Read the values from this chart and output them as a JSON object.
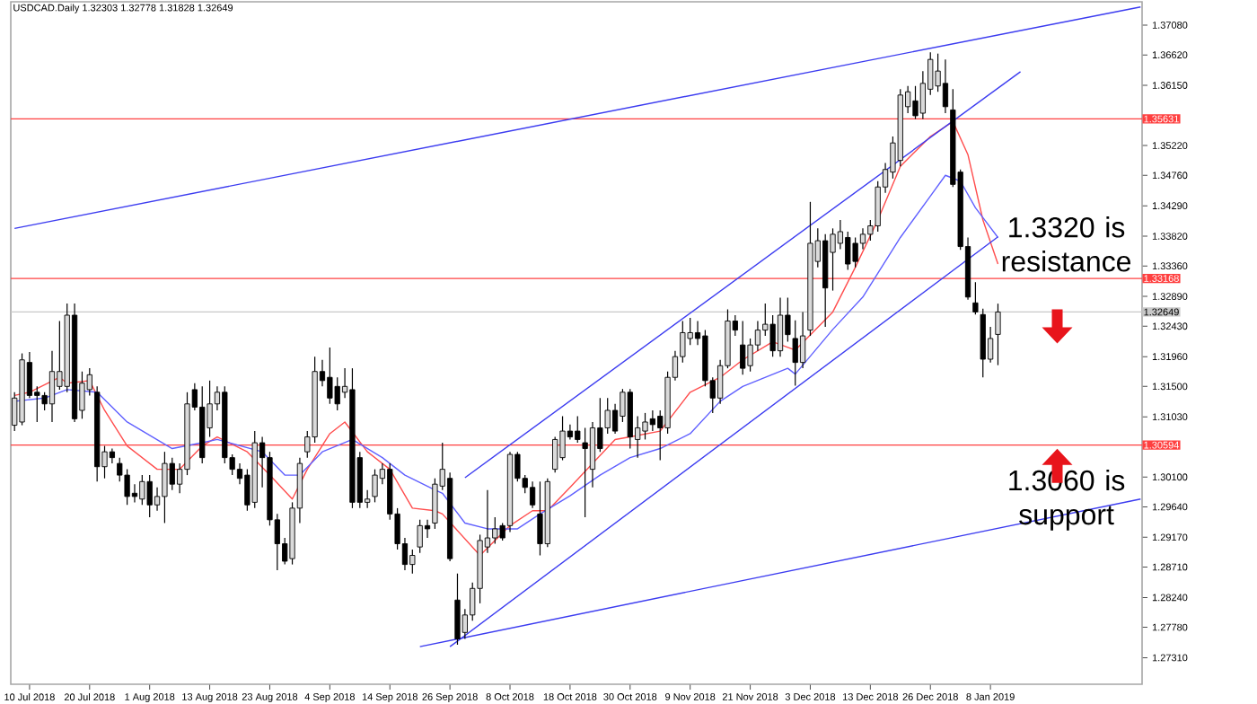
{
  "chart_data": {
    "type": "candlestick",
    "title": "USDCAD.Daily  1.32303 1.32778 1.31828 1.32649",
    "categories": [
      null,
      null,
      "10 Jul 2018",
      null,
      null,
      null,
      null,
      null,
      null,
      null,
      "20 Jul 2018",
      null,
      null,
      null,
      null,
      null,
      null,
      null,
      "1 Aug 2018",
      null,
      null,
      null,
      null,
      null,
      null,
      null,
      "13 Aug 2018",
      null,
      null,
      null,
      null,
      null,
      null,
      null,
      "23 Aug 2018",
      null,
      null,
      null,
      null,
      null,
      null,
      null,
      "4 Sep 2018",
      null,
      null,
      null,
      null,
      null,
      null,
      null,
      "14 Sep 2018",
      null,
      null,
      null,
      null,
      null,
      null,
      null,
      "26 Sep 2018",
      null,
      null,
      null,
      null,
      null,
      null,
      null,
      "8 Oct 2018",
      null,
      null,
      null,
      null,
      null,
      null,
      null,
      "18 Oct 2018",
      null,
      null,
      null,
      null,
      null,
      null,
      null,
      "30 Oct 2018",
      null,
      null,
      null,
      null,
      null,
      null,
      null,
      "9 Nov 2018",
      null,
      null,
      null,
      null,
      null,
      null,
      null,
      "21 Nov 2018",
      null,
      null,
      null,
      null,
      null,
      null,
      null,
      "3 Dec 2018",
      null,
      null,
      null,
      null,
      null,
      null,
      null,
      "13 Dec 2018",
      null,
      null,
      null,
      null,
      null,
      null,
      null,
      "26 Dec 2018",
      null,
      null,
      null,
      null,
      null,
      null,
      null,
      "8 Jan 2019",
      null,
      null,
      null,
      null,
      null,
      null,
      null,
      null,
      null,
      null,
      null,
      null,
      null,
      null,
      null,
      null,
      null,
      null,
      null,
      null
    ],
    "ohlc": [
      [
        1.309,
        1.3141,
        1.3081,
        1.3132
      ],
      [
        1.3095,
        1.3201,
        1.309,
        1.3191
      ],
      [
        1.3187,
        1.3203,
        1.3132,
        1.3136
      ],
      [
        1.3141,
        1.315,
        1.3095,
        1.3136
      ],
      [
        1.3136,
        1.3141,
        1.3113,
        1.3123
      ],
      [
        1.3123,
        1.3205,
        1.3095,
        1.3173
      ],
      [
        1.315,
        1.3251,
        1.3145,
        1.3173
      ],
      [
        1.315,
        1.3278,
        1.3141,
        1.326
      ],
      [
        1.326,
        1.3278,
        1.3095,
        1.31
      ],
      [
        1.3113,
        1.3173,
        1.31,
        1.3155
      ],
      [
        1.3145,
        1.3178,
        1.3136,
        1.3168
      ],
      [
        1.3141,
        1.315,
        1.3003,
        1.3026
      ],
      [
        1.3026,
        1.3058,
        1.3008,
        1.3049
      ],
      [
        1.3049,
        1.3054,
        1.3031,
        1.304
      ],
      [
        1.3031,
        1.304,
        1.3003,
        1.3013
      ],
      [
        1.3013,
        1.3022,
        1.2967,
        1.298
      ],
      [
        1.2985,
        1.2999,
        1.2971,
        1.298
      ],
      [
        1.2976,
        1.3013,
        1.2967,
        1.3003
      ],
      [
        1.3003,
        1.3013,
        1.2948,
        1.2967
      ],
      [
        1.2967,
        1.2994,
        1.2958,
        1.298
      ],
      [
        1.298,
        1.3049,
        1.2939,
        1.3031
      ],
      [
        1.3031,
        1.304,
        1.299,
        1.2999
      ],
      [
        1.2999,
        1.3031,
        1.2985,
        1.3022
      ],
      [
        1.3022,
        1.3141,
        1.3013,
        1.3123
      ],
      [
        1.3145,
        1.3155,
        1.3113,
        1.3118
      ],
      [
        1.3118,
        1.315,
        1.3031,
        1.304
      ],
      [
        1.3086,
        1.3159,
        1.3072,
        1.3123
      ],
      [
        1.3123,
        1.315,
        1.3113,
        1.3141
      ],
      [
        1.3141,
        1.315,
        1.3031,
        1.304
      ],
      [
        1.304,
        1.3045,
        1.3013,
        1.3022
      ],
      [
        1.3022,
        1.3031,
        1.2999,
        1.3008
      ],
      [
        1.3013,
        1.3022,
        1.2958,
        1.2967
      ],
      [
        1.2971,
        1.3081,
        1.2962,
        1.3063
      ],
      [
        1.3063,
        1.3072,
        1.2994,
        1.304
      ],
      [
        1.304,
        1.3049,
        1.2935,
        1.2944
      ],
      [
        1.2944,
        1.2953,
        1.2866,
        1.2907
      ],
      [
        1.2907,
        1.2916,
        1.2875,
        1.288
      ],
      [
        1.2884,
        1.2971,
        1.2875,
        1.2962
      ],
      [
        1.2962,
        1.304,
        1.2939,
        1.3031
      ],
      [
        1.3049,
        1.3081,
        1.304,
        1.3072
      ],
      [
        1.3072,
        1.3196,
        1.3063,
        1.3173
      ],
      [
        1.3173,
        1.3191,
        1.315,
        1.3159
      ],
      [
        1.3164,
        1.321,
        1.3123,
        1.3132
      ],
      [
        1.315,
        1.3164,
        1.3113,
        1.3123
      ],
      [
        1.3141,
        1.3178,
        1.3132,
        1.315
      ],
      [
        1.3145,
        1.3178,
        1.2962,
        1.2971
      ],
      [
        1.304,
        1.3049,
        1.2962,
        1.2971
      ],
      [
        1.2971,
        1.299,
        1.2962,
        1.2976
      ],
      [
        1.298,
        1.3022,
        1.2971,
        1.3013
      ],
      [
        1.3008,
        1.3031,
        1.2999,
        1.3022
      ],
      [
        1.3022,
        1.3031,
        1.2944,
        1.2953
      ],
      [
        1.2953,
        1.2962,
        1.2898,
        1.2907
      ],
      [
        1.2907,
        1.2916,
        1.2866,
        1.2875
      ],
      [
        1.2875,
        1.2898,
        1.2861,
        1.2889
      ],
      [
        1.2902,
        1.2944,
        1.2893,
        1.2935
      ],
      [
        1.2935,
        1.2944,
        1.2916,
        1.293
      ],
      [
        1.2939,
        1.3008,
        1.293,
        1.2999
      ],
      [
        1.2996,
        1.3063,
        1.299,
        1.3022
      ],
      [
        1.3008,
        1.3017,
        1.288,
        1.2884
      ],
      [
        1.282,
        1.2861,
        1.2751,
        1.276
      ],
      [
        1.277,
        1.2806,
        1.276,
        1.2797
      ],
      [
        1.2797,
        1.2847,
        1.2788,
        1.2838
      ],
      [
        1.2838,
        1.2921,
        1.2815,
        1.2912
      ],
      [
        1.2902,
        1.299,
        1.2893,
        1.2916
      ],
      [
        1.2916,
        1.2948,
        1.2907,
        1.293
      ],
      [
        1.2935,
        1.2939,
        1.2912,
        1.2916
      ],
      [
        1.2935,
        1.3049,
        1.2925,
        1.3045
      ],
      [
        1.3045,
        1.3049,
        1.3003,
        1.3008
      ],
      [
        1.3008,
        1.3013,
        1.2985,
        1.2994
      ],
      [
        1.2994,
        1.3003,
        1.2962,
        1.2967
      ],
      [
        1.2953,
        1.3003,
        1.2889,
        1.2907
      ],
      [
        1.2907,
        1.3008,
        1.2902,
        1.3003
      ],
      [
        1.3022,
        1.3072,
        1.3017,
        1.3068
      ],
      [
        1.304,
        1.3104,
        1.3036,
        1.3081
      ],
      [
        1.3081,
        1.3091,
        1.3068,
        1.3072
      ],
      [
        1.3081,
        1.3104,
        1.3063,
        1.3068
      ],
      [
        1.3063,
        1.3086,
        1.2948,
        1.3054
      ],
      [
        1.3022,
        1.3095,
        1.2994,
        1.3086
      ],
      [
        1.3086,
        1.3132,
        1.3049,
        1.3054
      ],
      [
        1.3086,
        1.3132,
        1.3077,
        1.3113
      ],
      [
        1.3113,
        1.3123,
        1.3077,
        1.3081
      ],
      [
        1.3104,
        1.3146,
        1.3095,
        1.3141
      ],
      [
        1.3141,
        1.3146,
        1.3054,
        1.3072
      ],
      [
        1.3068,
        1.3104,
        1.304,
        1.3086
      ],
      [
        1.3081,
        1.3109,
        1.3068,
        1.3095
      ],
      [
        1.31,
        1.3113,
        1.3081,
        1.3091
      ],
      [
        1.3104,
        1.3113,
        1.3036,
        1.3086
      ],
      [
        1.3086,
        1.3173,
        1.3077,
        1.3164
      ],
      [
        1.3164,
        1.3205,
        1.3159,
        1.3196
      ],
      [
        1.3196,
        1.3251,
        1.3187,
        1.3233
      ],
      [
        1.3224,
        1.3256,
        1.3214,
        1.3233
      ],
      [
        1.3233,
        1.3251,
        1.3214,
        1.3224
      ],
      [
        1.3228,
        1.3237,
        1.315,
        1.3159
      ],
      [
        1.3159,
        1.3164,
        1.3109,
        1.3132
      ],
      [
        1.3132,
        1.3191,
        1.3123,
        1.3182
      ],
      [
        1.3182,
        1.3269,
        1.3178,
        1.3251
      ],
      [
        1.3251,
        1.326,
        1.3228,
        1.3237
      ],
      [
        1.3214,
        1.3251,
        1.3168,
        1.3178
      ],
      [
        1.3182,
        1.3224,
        1.3173,
        1.3214
      ],
      [
        1.3214,
        1.3251,
        1.3205,
        1.3237
      ],
      [
        1.3237,
        1.3278,
        1.3228,
        1.3246
      ],
      [
        1.3246,
        1.326,
        1.3196,
        1.3205
      ],
      [
        1.3205,
        1.3287,
        1.3196,
        1.326
      ],
      [
        1.326,
        1.3287,
        1.3219,
        1.323
      ],
      [
        1.3224,
        1.3252,
        1.3151,
        1.3187
      ],
      [
        1.3187,
        1.3265,
        1.3178,
        1.3228
      ],
      [
        1.3237,
        1.3435,
        1.3228,
        1.3371
      ],
      [
        1.3343,
        1.3394,
        1.3334,
        1.3375
      ],
      [
        1.3375,
        1.3385,
        1.3242,
        1.3302
      ],
      [
        1.3357,
        1.3394,
        1.3298,
        1.3385
      ],
      [
        1.3371,
        1.3407,
        1.3362,
        1.3389
      ],
      [
        1.338,
        1.3389,
        1.333,
        1.3339
      ],
      [
        1.3371,
        1.338,
        1.3334,
        1.3343
      ],
      [
        1.3371,
        1.3394,
        1.3362,
        1.3385
      ],
      [
        1.3385,
        1.3407,
        1.3375,
        1.3398
      ],
      [
        1.3398,
        1.3467,
        1.3389,
        1.3458
      ],
      [
        1.3458,
        1.3495,
        1.3449,
        1.3485
      ],
      [
        1.3481,
        1.3536,
        1.3471,
        1.3526
      ],
      [
        1.3499,
        1.3609,
        1.349,
        1.36
      ],
      [
        1.3582,
        1.3614,
        1.3572,
        1.3605
      ],
      [
        1.3591,
        1.3614,
        1.3563,
        1.3568
      ],
      [
        1.3572,
        1.3637,
        1.3563,
        1.3618
      ],
      [
        1.3609,
        1.3666,
        1.36,
        1.3655
      ],
      [
        1.3614,
        1.3664,
        1.3605,
        1.3637
      ],
      [
        1.3618,
        1.3655,
        1.3572,
        1.3582
      ],
      [
        1.3577,
        1.3609,
        1.3458,
        1.3462
      ],
      [
        1.3481,
        1.3485,
        1.3361,
        1.3366
      ],
      [
        1.3366,
        1.338,
        1.3284,
        1.3288
      ],
      [
        1.3279,
        1.3311,
        1.3261,
        1.3265
      ],
      [
        1.3261,
        1.327,
        1.3164,
        1.3192
      ],
      [
        1.3192,
        1.3242,
        1.3187,
        1.3224
      ],
      [
        1.32303,
        1.32778,
        1.31828,
        1.32649
      ],
      null,
      null,
      null,
      null,
      null,
      null,
      null,
      null,
      null,
      null,
      null,
      null,
      null,
      null,
      null,
      null,
      null,
      null,
      null
    ],
    "series": [
      {
        "type": "line",
        "color": "#ff4d4d",
        "values": [
          1.3136,
          null,
          1.3141,
          null,
          null,
          null,
          1.3164,
          1.3155,
          null,
          null,
          1.3159,
          null,
          1.3113,
          null,
          null,
          1.3058,
          null,
          null,
          null,
          1.3022,
          null,
          null,
          1.3022,
          null,
          null,
          1.3058,
          null,
          1.3072,
          null,
          null,
          null,
          1.3049,
          null,
          null,
          1.3013,
          null,
          null,
          1.2976,
          null,
          1.3022,
          null,
          null,
          1.3077,
          null,
          1.3095,
          null,
          null,
          1.3049,
          null,
          null,
          1.3022,
          null,
          null,
          1.2962,
          null,
          null,
          1.2958,
          1.2953,
          null,
          null,
          null,
          null,
          1.2889,
          null,
          null,
          null,
          1.2935,
          null,
          null,
          1.2958,
          null,
          1.2958,
          null,
          null,
          1.2994,
          null,
          null,
          1.3031,
          null,
          null,
          1.3068,
          null,
          1.3072,
          null,
          null,
          null,
          1.3081,
          null,
          null,
          null,
          1.3141,
          null,
          null,
          null,
          1.3164,
          null,
          null,
          1.3191,
          null,
          null,
          null,
          1.3219,
          null,
          null,
          1.3206,
          null,
          null,
          null,
          null,
          1.3265,
          null,
          null,
          1.3334,
          null,
          null,
          1.3407,
          null,
          null,
          1.349,
          null,
          null,
          null,
          1.3536,
          null,
          null,
          1.3559,
          null,
          1.3508,
          null,
          1.3407,
          null,
          1.3339,
          null,
          null,
          null,
          null,
          null,
          null,
          null,
          null,
          null,
          null,
          null,
          null,
          null,
          null,
          null,
          null,
          null,
          null,
          null
        ]
      },
      {
        "type": "line",
        "color": "#6060ff",
        "values": [
          1.3127,
          null,
          null,
          null,
          1.3132,
          null,
          null,
          1.3145,
          null,
          null,
          null,
          1.3141,
          null,
          null,
          null,
          1.3095,
          null,
          null,
          null,
          null,
          null,
          1.3054,
          null,
          null,
          null,
          1.3063,
          null,
          1.3068,
          null,
          null,
          null,
          null,
          null,
          1.3049,
          null,
          null,
          1.3013,
          null,
          1.3013,
          null,
          null,
          1.3049,
          null,
          null,
          null,
          1.3068,
          null,
          null,
          null,
          1.304,
          null,
          null,
          1.3013,
          null,
          null,
          null,
          1.299,
          1.2985,
          null,
          null,
          1.2939,
          null,
          null,
          1.293,
          null,
          null,
          null,
          1.293,
          null,
          null,
          1.2953,
          null,
          null,
          null,
          1.2981,
          null,
          null,
          null,
          1.3013,
          null,
          null,
          null,
          1.304,
          null,
          null,
          null,
          1.3054,
          null,
          null,
          null,
          1.3077,
          null,
          null,
          null,
          1.3127,
          null,
          null,
          1.315,
          null,
          null,
          null,
          null,
          null,
          1.3178,
          1.3169,
          null,
          null,
          null,
          null,
          1.3238,
          null,
          null,
          null,
          1.3288,
          null,
          null,
          null,
          null,
          1.338,
          null,
          null,
          null,
          1.3444,
          null,
          1.3476,
          null,
          1.3467,
          null,
          1.3426,
          null,
          null,
          1.338,
          null,
          null,
          null,
          null,
          null,
          null,
          null,
          null,
          null,
          null,
          null,
          null,
          null,
          null,
          null,
          null,
          null,
          null,
          null
        ]
      },
      {
        "type": "line",
        "color": "#3c3cf0",
        "values": [
          1.3394,
          null,
          null,
          null,
          null,
          null,
          null,
          null,
          null,
          null,
          null,
          null,
          null,
          null,
          null,
          null,
          null,
          null,
          null,
          null,
          null,
          null,
          null,
          null,
          null,
          null,
          null,
          null,
          null,
          null,
          null,
          null,
          null,
          null,
          null,
          null,
          null,
          null,
          null,
          null,
          null,
          null,
          null,
          null,
          null,
          null,
          null,
          null,
          null,
          null,
          null,
          null,
          null,
          null,
          null,
          null,
          null,
          null,
          null,
          null,
          null,
          null,
          null,
          null,
          null,
          null,
          null,
          null,
          null,
          null,
          null,
          null,
          null,
          null,
          null,
          null,
          null,
          null,
          null,
          null,
          null,
          null,
          null,
          null,
          null,
          null,
          null,
          null,
          null,
          null,
          null,
          null,
          null,
          null,
          null,
          null,
          null,
          null,
          null,
          null,
          null,
          null,
          null,
          null,
          null,
          null,
          null,
          null,
          null,
          null,
          null,
          null,
          null,
          null,
          null,
          null,
          null,
          null,
          null,
          null,
          null,
          null,
          null,
          null,
          null,
          null,
          null,
          null,
          null,
          null,
          null,
          null,
          null,
          null,
          null,
          null,
          null,
          null,
          null,
          null,
          null,
          null,
          null,
          null,
          null,
          null,
          null,
          null,
          null,
          null,
          1.3736
        ]
      },
      {
        "type": "line",
        "color": "#3c3cf0",
        "values": [
          null,
          null,
          null,
          null,
          null,
          null,
          null,
          null,
          null,
          null,
          null,
          null,
          null,
          null,
          null,
          null,
          null,
          null,
          null,
          null,
          null,
          null,
          null,
          null,
          null,
          null,
          null,
          null,
          null,
          null,
          null,
          null,
          null,
          null,
          null,
          null,
          null,
          null,
          null,
          null,
          null,
          null,
          null,
          null,
          null,
          null,
          null,
          null,
          null,
          null,
          null,
          null,
          null,
          null,
          1.2748,
          null,
          null,
          null,
          null,
          null,
          null,
          null,
          null,
          null,
          null,
          null,
          null,
          null,
          null,
          null,
          null,
          null,
          null,
          null,
          null,
          null,
          null,
          null,
          null,
          null,
          null,
          null,
          null,
          null,
          null,
          null,
          null,
          null,
          null,
          null,
          null,
          null,
          null,
          null,
          null,
          null,
          null,
          null,
          null,
          null,
          null,
          null,
          null,
          null,
          null,
          null,
          null,
          null,
          null,
          null,
          null,
          null,
          null,
          null,
          null,
          null,
          null,
          null,
          null,
          null,
          null,
          null,
          null,
          null,
          null,
          null,
          null,
          null,
          null,
          null,
          null,
          null,
          null,
          null,
          null,
          null,
          null,
          null,
          null,
          null,
          null,
          null,
          null,
          null,
          null,
          null,
          null,
          null,
          null,
          null,
          1.2976
        ]
      },
      {
        "type": "line",
        "color": "#3c3cf0",
        "values": [
          null,
          null,
          null,
          null,
          null,
          null,
          null,
          null,
          null,
          null,
          null,
          null,
          null,
          null,
          null,
          null,
          null,
          null,
          null,
          null,
          null,
          null,
          null,
          null,
          null,
          null,
          null,
          null,
          null,
          null,
          null,
          null,
          null,
          null,
          null,
          null,
          null,
          null,
          null,
          null,
          null,
          null,
          null,
          null,
          null,
          null,
          null,
          null,
          null,
          null,
          null,
          null,
          null,
          null,
          null,
          null,
          null,
          null,
          1.2748,
          null,
          null,
          null,
          null,
          null,
          null,
          null,
          null,
          null,
          null,
          null,
          null,
          null,
          null,
          null,
          null,
          null,
          null,
          null,
          null,
          null,
          null,
          null,
          null,
          null,
          null,
          null,
          null,
          null,
          null,
          null,
          null,
          null,
          null,
          null,
          null,
          null,
          null,
          null,
          null,
          null,
          null,
          null,
          null,
          null,
          null,
          null,
          null,
          null,
          null,
          null,
          null,
          null,
          null,
          null,
          null,
          null,
          null,
          null,
          null,
          null,
          null,
          null,
          null,
          null,
          null,
          null,
          null,
          null,
          null,
          null,
          null,
          1.3381,
          null,
          null,
          null,
          null,
          null,
          null,
          null,
          null,
          null,
          null,
          null,
          null,
          null,
          null,
          null,
          null,
          null,
          null,
          null
        ]
      },
      {
        "type": "line",
        "color": "#3c3cf0",
        "values": [
          null,
          null,
          null,
          null,
          null,
          null,
          null,
          null,
          null,
          null,
          null,
          null,
          null,
          null,
          null,
          null,
          null,
          null,
          null,
          null,
          null,
          null,
          null,
          null,
          null,
          null,
          null,
          null,
          null,
          null,
          null,
          null,
          null,
          null,
          null,
          null,
          null,
          null,
          null,
          null,
          null,
          null,
          null,
          null,
          null,
          null,
          null,
          null,
          null,
          null,
          null,
          null,
          null,
          null,
          null,
          null,
          null,
          null,
          null,
          null,
          1.3009,
          null,
          null,
          null,
          null,
          null,
          null,
          null,
          null,
          null,
          null,
          null,
          null,
          null,
          null,
          null,
          null,
          null,
          null,
          null,
          null,
          null,
          null,
          null,
          null,
          null,
          null,
          null,
          null,
          null,
          null,
          null,
          null,
          null,
          null,
          null,
          null,
          null,
          null,
          null,
          null,
          null,
          null,
          null,
          null,
          null,
          null,
          null,
          null,
          null,
          null,
          null,
          null,
          null,
          null,
          null,
          null,
          null,
          null,
          null,
          null,
          null,
          null,
          null,
          null,
          null,
          null,
          null,
          null,
          null,
          null,
          null,
          null,
          null,
          1.3636,
          null,
          null,
          null,
          null,
          null,
          null,
          null,
          null,
          null,
          null,
          null,
          null,
          null,
          null,
          null,
          null
        ]
      }
    ],
    "ylim": [
      1.269,
      1.3744
    ],
    "yticks": [
      {
        "value": 1.3708,
        "label": "1.37080"
      },
      {
        "value": 1.3662,
        "label": "1.36620"
      },
      {
        "value": 1.3615,
        "label": "1.36150"
      },
      {
        "value": 1.3522,
        "label": "1.35220"
      },
      {
        "value": 1.3476,
        "label": "1.34760"
      },
      {
        "value": 1.3429,
        "label": "1.34290"
      },
      {
        "value": 1.3382,
        "label": "1.33820"
      },
      {
        "value": 1.3336,
        "label": "1.33360"
      },
      {
        "value": 1.3289,
        "label": "1.32890"
      },
      {
        "value": 1.3243,
        "label": "1.32430"
      },
      {
        "value": 1.3196,
        "label": "1.31960"
      },
      {
        "value": 1.315,
        "label": "1.31500"
      },
      {
        "value": 1.3103,
        "label": "1.31030"
      },
      {
        "value": 1.301,
        "label": "1.30100"
      },
      {
        "value": 1.2964,
        "label": "1.29640"
      },
      {
        "value": 1.2917,
        "label": "1.29170"
      },
      {
        "value": 1.2871,
        "label": "1.28710"
      },
      {
        "value": 1.2824,
        "label": "1.28240"
      },
      {
        "value": 1.2778,
        "label": "1.27780"
      },
      {
        "value": 1.2731,
        "label": "1.27310"
      }
    ],
    "ref_lines": [
      {
        "axis": "y",
        "value": 1.35631,
        "label": "1.35631",
        "color": "#ff4040"
      },
      {
        "axis": "y",
        "value": 1.33168,
        "label": "1.33168",
        "color": "#ff4040"
      },
      {
        "axis": "y",
        "value": 1.30594,
        "label": "1.30594",
        "color": "#ff4040"
      },
      {
        "axis": "y",
        "value": 1.32649,
        "label": "1.32649",
        "color": "#c8c8c8"
      }
    ],
    "annotations": [
      "1.3320 is resistance",
      "1.3060 is support"
    ]
  }
}
